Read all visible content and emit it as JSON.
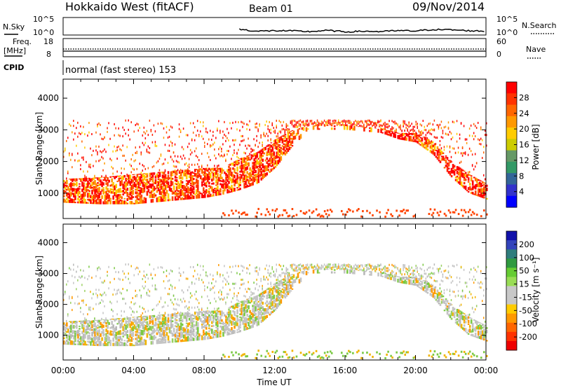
{
  "header": {
    "station": "Hokkaido West (fitACF)",
    "beam": "Beam 01",
    "date": "09/Nov/2014"
  },
  "top_panels": {
    "nsky_label": "N.Sky",
    "nsky_tick_hi": "10^5",
    "nsky_tick_lo": "10^0",
    "nsearch_label": "N.Search",
    "freq_label_1": "Freq.",
    "freq_label_2": "[MHz]",
    "freq_ticks": [
      "18",
      "8"
    ],
    "nave_ticks": [
      "60",
      "0"
    ],
    "nave_label": "Nave",
    "cpid_label": "CPID",
    "cpid_value": "normal (fast stereo) 153"
  },
  "power_colorbar": {
    "label": "Power [dB]",
    "ticks": [
      "28",
      "24",
      "20",
      "16",
      "12",
      "8",
      "4"
    ],
    "colors": [
      "#ff0000",
      "#ff3300",
      "#ff6600",
      "#ff9900",
      "#ffcc00",
      "#cccc00",
      "#669966",
      "#339966",
      "#336699",
      "#3333cc",
      "#0000ff"
    ]
  },
  "velocity_colorbar": {
    "label": "Velocity [m s⁻¹]",
    "ticks": [
      "200",
      "100",
      "50",
      "15",
      "-15",
      "-50",
      "-100",
      "-200"
    ],
    "colors": [
      "#1111aa",
      "#3344bb",
      "#2f7d7d",
      "#2f9a40",
      "#66cc33",
      "#99dd55",
      "#c8c8c8",
      "#c8c8c8",
      "#ffcc00",
      "#ff9900",
      "#ff6600",
      "#ff3300",
      "#ee0000"
    ]
  },
  "colors": {
    "power_red": "#ff0000",
    "velocity_grey": "#c0c0c0",
    "velocity_green": "#7ac943"
  },
  "chart_data": [
    {
      "type": "line",
      "title": "N.Sky",
      "x": [
        "10:00",
        "11:00",
        "12:00",
        "13:00",
        "14:00",
        "15:00",
        "16:00",
        "17:00",
        "18:00",
        "19:00",
        "20:00",
        "21:00",
        "22:00",
        "23:00",
        "24:00"
      ],
      "values": [
        1.5,
        0.8,
        1.0,
        0.9,
        0.7,
        1.1,
        0.6,
        0.8,
        0.7,
        1.0,
        0.9,
        1.4,
        1.3,
        1.0,
        0.8
      ],
      "yticks": [
        "10^0",
        "10^5"
      ]
    },
    {
      "type": "line",
      "title": "Freq. [MHz]",
      "x": [
        "00:00",
        "24:00"
      ],
      "values": [
        10.6,
        10.6
      ],
      "ylim": [
        8,
        18
      ]
    },
    {
      "type": "heatmap",
      "title": "Power [dB]",
      "xlabel": "Time UT",
      "ylabel": "Slant Range [km]",
      "xticks": [
        "00:00",
        "04:00",
        "08:00",
        "12:00",
        "16:00",
        "20:00",
        "00:00"
      ],
      "yticks": [
        1000,
        2000,
        3000,
        4000
      ],
      "xlim": [
        0,
        24
      ],
      "ylim": [
        200,
        4600
      ],
      "echo_band_edges_km": {
        "hours": [
          0,
          2,
          4,
          6,
          8,
          9,
          10,
          11,
          12,
          13,
          14,
          16,
          18,
          19,
          20,
          21,
          22,
          23,
          24
        ],
        "lower": [
          700,
          650,
          650,
          750,
          850,
          950,
          1100,
          1300,
          1800,
          2500,
          3000,
          3000,
          2900,
          2700,
          2600,
          2200,
          1500,
          1000,
          800
        ],
        "upper": [
          1450,
          1500,
          1600,
          1700,
          1800,
          1800,
          2100,
          2300,
          2700,
          3000,
          3150,
          3150,
          3050,
          2900,
          2900,
          2600,
          2000,
          1600,
          1300
        ]
      },
      "colorbar_ticks": [
        4,
        8,
        12,
        16,
        20,
        24,
        28
      ]
    },
    {
      "type": "heatmap",
      "title": "Velocity [m s⁻¹]",
      "xlabel": "Time UT",
      "ylabel": "Slant Range [km]",
      "xticks": [
        "00:00",
        "04:00",
        "08:00",
        "12:00",
        "16:00",
        "20:00",
        "00:00"
      ],
      "yticks": [
        1000,
        2000,
        3000,
        4000
      ],
      "xlim": [
        0,
        24
      ],
      "ylim": [
        200,
        4600
      ],
      "colorbar_ticks": [
        -200,
        -100,
        -50,
        -15,
        15,
        50,
        100,
        200
      ]
    }
  ],
  "x_axis": {
    "ticks": [
      "00:00",
      "04:00",
      "08:00",
      "12:00",
      "16:00",
      "20:00",
      "00:00"
    ],
    "label": "Time UT"
  },
  "y_axis": {
    "label": "Slant Range [km]",
    "ticks": [
      "1000",
      "2000",
      "3000",
      "4000"
    ]
  }
}
